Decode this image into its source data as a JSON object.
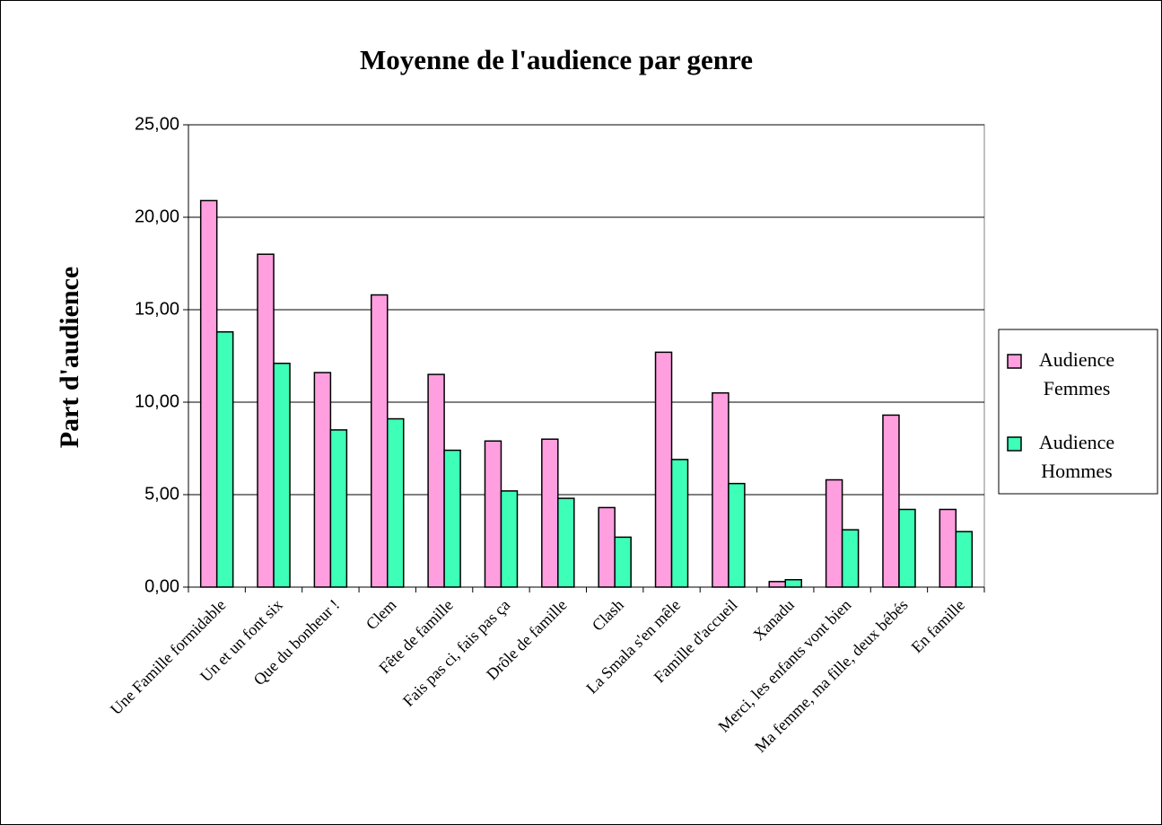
{
  "chart_data": {
    "type": "bar",
    "title": "Moyenne de l'audience par genre",
    "y_label": "Part d'audience",
    "categories": [
      "Une Famille formidable",
      "Un et un font six",
      "Que du bonheur !",
      "Clem",
      "Fête de famille",
      "Fais pas ci, fais pas ça",
      "Drôle de famille",
      "Clash",
      "La Smala s'en mêle",
      "Famille d'accueil",
      "Xanadu",
      "Merci, les enfants vont bien",
      "Ma femme, ma fille, deux bébés",
      "En famille"
    ],
    "series": [
      {
        "name": "Audience Femmes",
        "color": "#ff9fe0",
        "values": [
          20.9,
          18.0,
          11.6,
          15.8,
          11.5,
          7.9,
          8.0,
          4.3,
          12.7,
          10.5,
          0.3,
          5.8,
          9.3,
          4.2
        ]
      },
      {
        "name": "Audience Hommes",
        "color": "#3dffb8",
        "values": [
          13.8,
          12.1,
          8.5,
          9.1,
          7.4,
          5.2,
          4.8,
          2.7,
          6.9,
          5.6,
          0.4,
          3.1,
          4.2,
          3.0
        ]
      }
    ],
    "ylim": [
      0,
      25
    ],
    "yticks": [
      {
        "value": 0,
        "label": "0,00"
      },
      {
        "value": 5,
        "label": "5,00"
      },
      {
        "value": 10,
        "label": "10,00"
      },
      {
        "value": 15,
        "label": "15,00"
      },
      {
        "value": 20,
        "label": "20,00"
      },
      {
        "value": 25,
        "label": "25,00"
      }
    ],
    "grid": true,
    "legend": "right"
  }
}
